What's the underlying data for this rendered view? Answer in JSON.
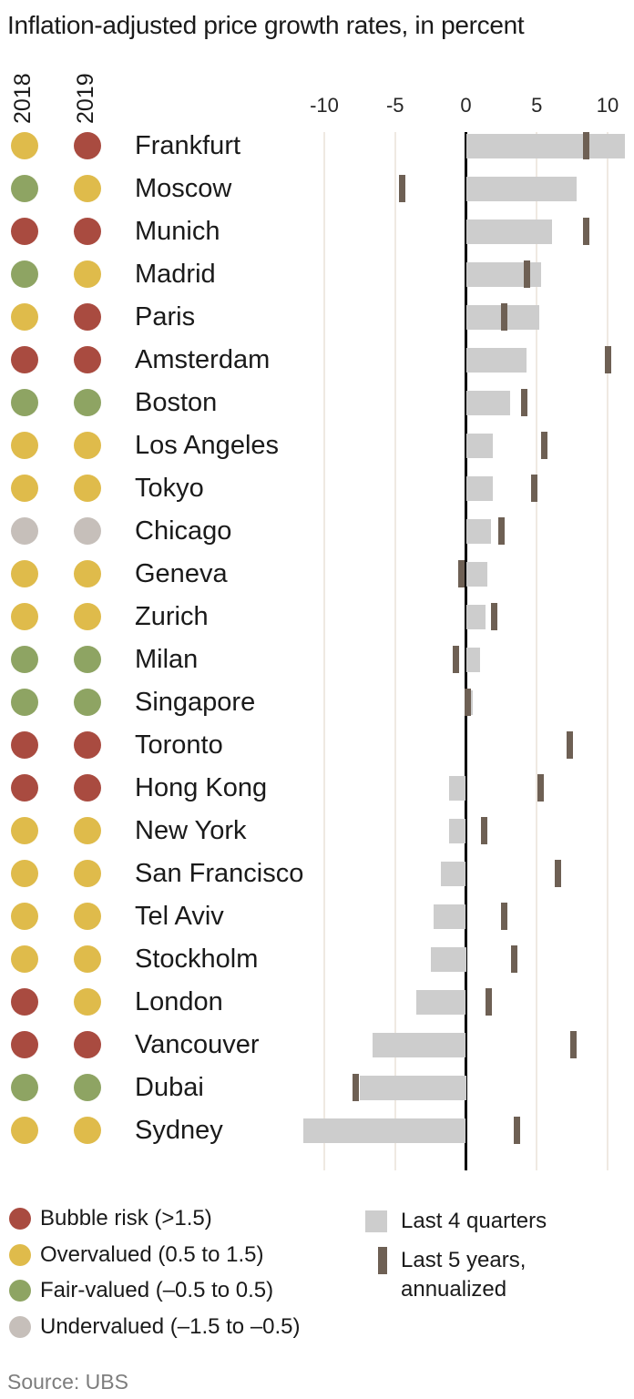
{
  "title": "Inflation-adjusted price growth rates, in percent",
  "dot_column_headers": [
    "2018",
    "2019"
  ],
  "source": "Source: UBS",
  "colors": {
    "bubble_risk": "#a94b40",
    "overvalued": "#dfbb4b",
    "fair_valued": "#8ea463",
    "undervalued": "#c6bfba",
    "bar": "#cdcdcd",
    "marker": "#6e6054",
    "gridline": "#efe9e2",
    "zero_line": "#000000"
  },
  "legend": {
    "ratings": [
      {
        "key": "bubble_risk",
        "label": "Bubble risk (>1.5)"
      },
      {
        "key": "overvalued",
        "label": "Overvalued (0.5 to 1.5)"
      },
      {
        "key": "fair_valued",
        "label": "Fair-valued (–0.5 to 0.5)"
      },
      {
        "key": "undervalued",
        "label": "Undervalued (–1.5 to –0.5)"
      }
    ],
    "series": [
      {
        "key": "last_4_quarters",
        "label": "Last 4 quarters"
      },
      {
        "key": "last_5_years",
        "label": "Last 5 years, annualized"
      }
    ]
  },
  "chart_data": {
    "type": "bar",
    "orientation": "horizontal",
    "unit": "percent",
    "title": "Inflation-adjusted price growth rates, in percent",
    "xlabel": "",
    "ylabel": "",
    "xlim": [
      -11,
      12
    ],
    "grid": true,
    "ticks": [
      {
        "value": -10,
        "label": "-10"
      },
      {
        "value": -5,
        "label": "-5"
      },
      {
        "value": 0,
        "label": "0"
      },
      {
        "value": 5,
        "label": "5"
      },
      {
        "value": 10,
        "label": "10"
      }
    ],
    "cities": [
      {
        "name": "Frankfurt",
        "rating_2018": "overvalued",
        "rating_2019": "bubble_risk",
        "last_4_quarters": 11.2,
        "last_5_years_annualized": 8.5
      },
      {
        "name": "Moscow",
        "rating_2018": "fair_valued",
        "rating_2019": "overvalued",
        "last_4_quarters": 7.8,
        "last_5_years_annualized": -4.5
      },
      {
        "name": "Munich",
        "rating_2018": "bubble_risk",
        "rating_2019": "bubble_risk",
        "last_4_quarters": 6.1,
        "last_5_years_annualized": 8.5
      },
      {
        "name": "Madrid",
        "rating_2018": "fair_valued",
        "rating_2019": "overvalued",
        "last_4_quarters": 5.3,
        "last_5_years_annualized": 4.3
      },
      {
        "name": "Paris",
        "rating_2018": "overvalued",
        "rating_2019": "bubble_risk",
        "last_4_quarters": 5.2,
        "last_5_years_annualized": 2.7
      },
      {
        "name": "Amsterdam",
        "rating_2018": "bubble_risk",
        "rating_2019": "bubble_risk",
        "last_4_quarters": 4.3,
        "last_5_years_annualized": 10.0
      },
      {
        "name": "Boston",
        "rating_2018": "fair_valued",
        "rating_2019": "fair_valued",
        "last_4_quarters": 3.1,
        "last_5_years_annualized": 4.1
      },
      {
        "name": "Los Angeles",
        "rating_2018": "overvalued",
        "rating_2019": "overvalued",
        "last_4_quarters": 1.9,
        "last_5_years_annualized": 5.5
      },
      {
        "name": "Tokyo",
        "rating_2018": "overvalued",
        "rating_2019": "overvalued",
        "last_4_quarters": 1.9,
        "last_5_years_annualized": 4.8
      },
      {
        "name": "Chicago",
        "rating_2018": "undervalued",
        "rating_2019": "undervalued",
        "last_4_quarters": 1.8,
        "last_5_years_annualized": 2.5
      },
      {
        "name": "Geneva",
        "rating_2018": "overvalued",
        "rating_2019": "overvalued",
        "last_4_quarters": 1.5,
        "last_5_years_annualized": -0.3
      },
      {
        "name": "Zurich",
        "rating_2018": "overvalued",
        "rating_2019": "overvalued",
        "last_4_quarters": 1.4,
        "last_5_years_annualized": 2.0
      },
      {
        "name": "Milan",
        "rating_2018": "fair_valued",
        "rating_2019": "fair_valued",
        "last_4_quarters": 1.0,
        "last_5_years_annualized": -0.7
      },
      {
        "name": "Singapore",
        "rating_2018": "fair_valued",
        "rating_2019": "fair_valued",
        "last_4_quarters": 0.5,
        "last_5_years_annualized": 0.1
      },
      {
        "name": "Toronto",
        "rating_2018": "bubble_risk",
        "rating_2019": "bubble_risk",
        "last_4_quarters": 0.0,
        "last_5_years_annualized": 7.3
      },
      {
        "name": "Hong Kong",
        "rating_2018": "bubble_risk",
        "rating_2019": "bubble_risk",
        "last_4_quarters": -1.2,
        "last_5_years_annualized": 5.3
      },
      {
        "name": "New York",
        "rating_2018": "overvalued",
        "rating_2019": "overvalued",
        "last_4_quarters": -1.2,
        "last_5_years_annualized": 1.3
      },
      {
        "name": "San Francisco",
        "rating_2018": "overvalued",
        "rating_2019": "overvalued",
        "last_4_quarters": -1.8,
        "last_5_years_annualized": 6.5
      },
      {
        "name": "Tel Aviv",
        "rating_2018": "overvalued",
        "rating_2019": "overvalued",
        "last_4_quarters": -2.3,
        "last_5_years_annualized": 2.7
      },
      {
        "name": "Stockholm",
        "rating_2018": "overvalued",
        "rating_2019": "overvalued",
        "last_4_quarters": -2.5,
        "last_5_years_annualized": 3.4
      },
      {
        "name": "London",
        "rating_2018": "bubble_risk",
        "rating_2019": "overvalued",
        "last_4_quarters": -3.5,
        "last_5_years_annualized": 1.6
      },
      {
        "name": "Vancouver",
        "rating_2018": "bubble_risk",
        "rating_2019": "bubble_risk",
        "last_4_quarters": -6.6,
        "last_5_years_annualized": 7.6
      },
      {
        "name": "Dubai",
        "rating_2018": "fair_valued",
        "rating_2019": "fair_valued",
        "last_4_quarters": -7.5,
        "last_5_years_annualized": -7.8
      },
      {
        "name": "Sydney",
        "rating_2018": "overvalued",
        "rating_2019": "overvalued",
        "last_4_quarters": -11.5,
        "last_5_years_annualized": 3.6
      }
    ]
  }
}
